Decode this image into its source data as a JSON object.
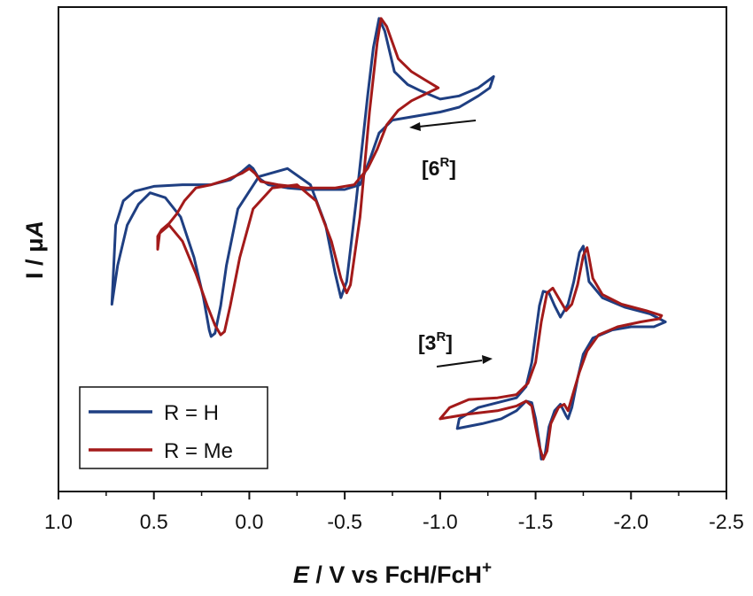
{
  "chart_data": {
    "type": "line",
    "xlabel": {
      "italic": "E",
      "rest": " / V vs FcH/FcH",
      "sup": "+"
    },
    "ylabel": {
      "main": "I / μ",
      "italic": "A"
    },
    "xlim": [
      1.0,
      -2.5
    ],
    "x_ticks": [
      1.0,
      0.5,
      0.0,
      -0.5,
      -1.0,
      -1.5,
      -2.0,
      -2.5
    ],
    "x_tick_labels": [
      "1.0",
      "0.5",
      "0.0",
      "-0.5",
      "-1.0",
      "-1.5",
      "-2.0",
      "-2.5"
    ],
    "y_ticks_labeled": false,
    "grid": false,
    "legend_position": "bottom-left",
    "colors": {
      "blue": "#1f3f82",
      "red": "#a31a1a",
      "axis": "#111111"
    },
    "series": [
      {
        "name": "R = H",
        "color": "#1f3f82"
      },
      {
        "name": "R = Me",
        "color": "#a31a1a"
      }
    ],
    "annotations": [
      {
        "base": "[6",
        "sup": "R",
        "close": "]",
        "arrow": "leftward"
      },
      {
        "base": "[3",
        "sup": "R",
        "close": "]",
        "arrow": "rightward"
      }
    ],
    "traces": [
      {
        "compound": "6",
        "series": "R = H",
        "points": [
          [
            0.72,
            -0.84
          ],
          [
            0.69,
            -0.6
          ],
          [
            0.64,
            -0.35
          ],
          [
            0.58,
            -0.22
          ],
          [
            0.52,
            -0.15
          ],
          [
            0.44,
            -0.18
          ],
          [
            0.36,
            -0.3
          ],
          [
            0.29,
            -0.55
          ],
          [
            0.24,
            -0.8
          ],
          [
            0.21,
            -1.0
          ],
          [
            0.2,
            -1.04
          ],
          [
            0.18,
            -1.02
          ],
          [
            0.15,
            -0.85
          ],
          [
            0.12,
            -0.6
          ],
          [
            0.06,
            -0.25
          ],
          [
            -0.05,
            -0.05
          ],
          [
            -0.2,
            0.0
          ],
          [
            -0.32,
            -0.1
          ],
          [
            -0.4,
            -0.35
          ],
          [
            -0.45,
            -0.65
          ],
          [
            -0.48,
            -0.8
          ],
          [
            -0.51,
            -0.7
          ],
          [
            -0.56,
            -0.2
          ],
          [
            -0.62,
            0.45
          ],
          [
            -0.65,
            0.75
          ],
          [
            -0.68,
            0.93
          ],
          [
            -0.71,
            0.85
          ],
          [
            -0.76,
            0.6
          ],
          [
            -0.83,
            0.52
          ],
          [
            -0.9,
            0.48
          ],
          [
            -1.0,
            0.43
          ],
          [
            -1.1,
            0.45
          ],
          [
            -1.2,
            0.5
          ],
          [
            -1.28,
            0.57
          ],
          [
            -1.26,
            0.5
          ],
          [
            -1.2,
            0.45
          ],
          [
            -1.1,
            0.38
          ],
          [
            -1.0,
            0.35
          ],
          [
            -0.85,
            0.32
          ],
          [
            -0.75,
            0.3
          ],
          [
            -0.68,
            0.22
          ],
          [
            -0.63,
            0.05
          ],
          [
            -0.58,
            -0.1
          ],
          [
            -0.5,
            -0.13
          ],
          [
            -0.4,
            -0.13
          ],
          [
            -0.3,
            -0.13
          ],
          [
            -0.2,
            -0.12
          ],
          [
            -0.1,
            -0.1
          ],
          [
            -0.05,
            -0.06
          ],
          [
            -0.02,
            0.0
          ],
          [
            0.0,
            0.02
          ],
          [
            0.04,
            -0.02
          ],
          [
            0.1,
            -0.07
          ],
          [
            0.2,
            -0.1
          ],
          [
            0.35,
            -0.1
          ],
          [
            0.5,
            -0.11
          ],
          [
            0.6,
            -0.14
          ],
          [
            0.66,
            -0.2
          ],
          [
            0.7,
            -0.35
          ],
          [
            0.72,
            -0.84
          ]
        ]
      },
      {
        "compound": "6",
        "series": "R = Me",
        "points": [
          [
            0.48,
            -0.5
          ],
          [
            0.47,
            -0.4
          ],
          [
            0.42,
            -0.35
          ],
          [
            0.35,
            -0.45
          ],
          [
            0.28,
            -0.65
          ],
          [
            0.22,
            -0.85
          ],
          [
            0.18,
            -0.97
          ],
          [
            0.15,
            -1.03
          ],
          [
            0.13,
            -1.01
          ],
          [
            0.1,
            -0.85
          ],
          [
            0.05,
            -0.55
          ],
          [
            -0.02,
            -0.25
          ],
          [
            -0.12,
            -0.12
          ],
          [
            -0.25,
            -0.1
          ],
          [
            -0.35,
            -0.2
          ],
          [
            -0.43,
            -0.45
          ],
          [
            -0.48,
            -0.68
          ],
          [
            -0.51,
            -0.77
          ],
          [
            -0.53,
            -0.72
          ],
          [
            -0.58,
            -0.3
          ],
          [
            -0.63,
            0.35
          ],
          [
            -0.67,
            0.78
          ],
          [
            -0.69,
            0.93
          ],
          [
            -0.72,
            0.88
          ],
          [
            -0.78,
            0.68
          ],
          [
            -0.85,
            0.6
          ],
          [
            -0.92,
            0.55
          ],
          [
            -0.99,
            0.5
          ],
          [
            -0.92,
            0.46
          ],
          [
            -0.85,
            0.42
          ],
          [
            -0.78,
            0.36
          ],
          [
            -0.72,
            0.27
          ],
          [
            -0.67,
            0.12
          ],
          [
            -0.62,
            0.0
          ],
          [
            -0.55,
            -0.1
          ],
          [
            -0.45,
            -0.12
          ],
          [
            -0.3,
            -0.12
          ],
          [
            -0.15,
            -0.1
          ],
          [
            -0.06,
            -0.08
          ],
          [
            -0.03,
            -0.03
          ],
          [
            0.0,
            0.0
          ],
          [
            0.04,
            -0.03
          ],
          [
            0.12,
            -0.07
          ],
          [
            0.2,
            -0.1
          ],
          [
            0.28,
            -0.12
          ],
          [
            0.34,
            -0.2
          ],
          [
            0.38,
            -0.28
          ],
          [
            0.42,
            -0.34
          ],
          [
            0.46,
            -0.38
          ],
          [
            0.48,
            -0.42
          ],
          [
            0.48,
            -0.5
          ]
        ]
      },
      {
        "compound": "3",
        "series": "R = H",
        "points": [
          [
            -1.09,
            -1.61
          ],
          [
            -1.22,
            -1.58
          ],
          [
            -1.32,
            -1.55
          ],
          [
            -1.4,
            -1.5
          ],
          [
            -1.45,
            -1.44
          ],
          [
            -1.48,
            -1.45
          ],
          [
            -1.5,
            -1.55
          ],
          [
            -1.52,
            -1.7
          ],
          [
            -1.53,
            -1.8
          ],
          [
            -1.55,
            -1.77
          ],
          [
            -1.57,
            -1.6
          ],
          [
            -1.6,
            -1.5
          ],
          [
            -1.63,
            -1.46
          ],
          [
            -1.66,
            -1.53
          ],
          [
            -1.67,
            -1.55
          ],
          [
            -1.69,
            -1.48
          ],
          [
            -1.72,
            -1.3
          ],
          [
            -1.75,
            -1.15
          ],
          [
            -1.8,
            -1.05
          ],
          [
            -1.9,
            -1.0
          ],
          [
            -2.0,
            -0.98
          ],
          [
            -2.12,
            -0.98
          ],
          [
            -2.18,
            -0.95
          ],
          [
            -2.1,
            -0.9
          ],
          [
            -1.97,
            -0.86
          ],
          [
            -1.85,
            -0.8
          ],
          [
            -1.78,
            -0.7
          ],
          [
            -1.76,
            -0.55
          ],
          [
            -1.75,
            -0.48
          ],
          [
            -1.73,
            -0.52
          ],
          [
            -1.7,
            -0.7
          ],
          [
            -1.67,
            -0.84
          ],
          [
            -1.63,
            -0.92
          ],
          [
            -1.6,
            -0.85
          ],
          [
            -1.57,
            -0.77
          ],
          [
            -1.54,
            -0.76
          ],
          [
            -1.52,
            -0.85
          ],
          [
            -1.48,
            -1.2
          ],
          [
            -1.45,
            -1.35
          ],
          [
            -1.4,
            -1.42
          ],
          [
            -1.3,
            -1.45
          ],
          [
            -1.2,
            -1.48
          ],
          [
            -1.1,
            -1.55
          ],
          [
            -1.09,
            -1.61
          ]
        ]
      },
      {
        "compound": "3",
        "series": "R = Me",
        "points": [
          [
            -1.0,
            -1.55
          ],
          [
            -1.15,
            -1.52
          ],
          [
            -1.3,
            -1.5
          ],
          [
            -1.4,
            -1.47
          ],
          [
            -1.45,
            -1.44
          ],
          [
            -1.48,
            -1.47
          ],
          [
            -1.5,
            -1.6
          ],
          [
            -1.52,
            -1.72
          ],
          [
            -1.54,
            -1.8
          ],
          [
            -1.56,
            -1.75
          ],
          [
            -1.58,
            -1.58
          ],
          [
            -1.62,
            -1.48
          ],
          [
            -1.65,
            -1.46
          ],
          [
            -1.67,
            -1.5
          ],
          [
            -1.69,
            -1.42
          ],
          [
            -1.73,
            -1.26
          ],
          [
            -1.77,
            -1.13
          ],
          [
            -1.83,
            -1.03
          ],
          [
            -1.93,
            -0.98
          ],
          [
            -2.05,
            -0.95
          ],
          [
            -2.15,
            -0.93
          ],
          [
            -2.16,
            -0.91
          ],
          [
            -2.08,
            -0.88
          ],
          [
            -1.95,
            -0.84
          ],
          [
            -1.85,
            -0.78
          ],
          [
            -1.8,
            -0.68
          ],
          [
            -1.78,
            -0.55
          ],
          [
            -1.77,
            -0.49
          ],
          [
            -1.75,
            -0.54
          ],
          [
            -1.72,
            -0.72
          ],
          [
            -1.69,
            -0.84
          ],
          [
            -1.66,
            -0.88
          ],
          [
            -1.62,
            -0.8
          ],
          [
            -1.59,
            -0.74
          ],
          [
            -1.56,
            -0.77
          ],
          [
            -1.53,
            -0.95
          ],
          [
            -1.5,
            -1.2
          ],
          [
            -1.46,
            -1.33
          ],
          [
            -1.4,
            -1.4
          ],
          [
            -1.3,
            -1.42
          ],
          [
            -1.15,
            -1.43
          ],
          [
            -1.05,
            -1.48
          ],
          [
            -1.0,
            -1.55
          ]
        ]
      }
    ]
  }
}
